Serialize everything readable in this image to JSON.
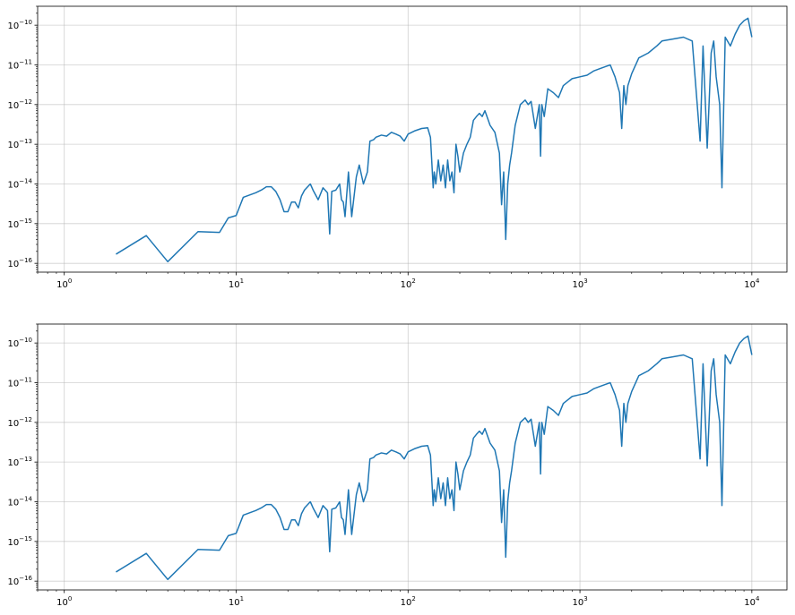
{
  "chart_data": [
    {
      "type": "line",
      "xscale": "log",
      "yscale": "log",
      "grid": true,
      "xlim": [
        0.7,
        16000
      ],
      "ylim": [
        6e-17,
        3e-10
      ],
      "x_ticks": [
        1,
        10,
        100,
        1000,
        10000
      ],
      "x_tick_labels": [
        {
          "base": "10",
          "exp": "0"
        },
        {
          "base": "10",
          "exp": "1"
        },
        {
          "base": "10",
          "exp": "2"
        },
        {
          "base": "10",
          "exp": "3"
        },
        {
          "base": "10",
          "exp": "4"
        }
      ],
      "y_ticks": [
        1e-16,
        1e-15,
        1e-14,
        1e-13,
        1e-12,
        1e-11,
        1e-10
      ],
      "y_tick_labels": [
        {
          "base": "10",
          "exp": "−16"
        },
        {
          "base": "10",
          "exp": "−15"
        },
        {
          "base": "10",
          "exp": "−14"
        },
        {
          "base": "10",
          "exp": "−13"
        },
        {
          "base": "10",
          "exp": "−12"
        },
        {
          "base": "10",
          "exp": "−11"
        },
        {
          "base": "10",
          "exp": "−10"
        }
      ],
      "series": [
        {
          "color": "#1f77b4",
          "x": [
            2,
            3,
            4,
            6,
            8,
            9,
            10,
            11,
            13,
            14,
            15,
            16,
            17,
            18,
            19,
            20,
            21,
            22,
            23,
            24,
            25,
            27,
            28,
            30,
            32,
            34,
            35,
            36,
            38,
            40,
            41,
            42,
            43,
            45,
            47,
            50,
            52,
            55,
            58,
            60,
            63,
            65,
            70,
            75,
            80,
            85,
            90,
            95,
            100,
            110,
            120,
            130,
            135,
            140,
            142,
            145,
            150,
            155,
            160,
            165,
            170,
            175,
            180,
            185,
            190,
            195,
            200,
            210,
            220,
            230,
            240,
            250,
            260,
            270,
            280,
            300,
            320,
            340,
            350,
            360,
            370,
            380,
            390,
            400,
            420,
            450,
            480,
            500,
            520,
            550,
            580,
            590,
            600,
            620,
            650,
            700,
            750,
            800,
            900,
            1000,
            1100,
            1200,
            1300,
            1400,
            1500,
            1600,
            1700,
            1750,
            1800,
            1850,
            1900,
            2000,
            2200,
            2500,
            2800,
            3000,
            3500,
            4000,
            4500,
            5000,
            5200,
            5500,
            5800,
            6000,
            6200,
            6500,
            6700,
            7000,
            7500,
            8000,
            8500,
            9000,
            9500,
            10000
          ],
          "y": [
            1.7e-16,
            5e-16,
            1.1e-16,
            6.3e-16,
            6e-16,
            1.4e-15,
            1.6e-15,
            4.6e-15,
            6e-15,
            7e-15,
            8.5e-15,
            8.5e-15,
            6.5e-15,
            4e-15,
            2e-15,
            2e-15,
            3.5e-15,
            3.5e-15,
            2.5e-15,
            5e-15,
            7e-15,
            1e-14,
            7e-15,
            4e-15,
            8e-15,
            6e-15,
            5.5e-16,
            6.5e-15,
            7e-15,
            1e-14,
            4e-15,
            3.5e-15,
            1.5e-15,
            2e-14,
            1.5e-15,
            1.5e-14,
            3e-14,
            1e-14,
            2e-14,
            1.2e-13,
            1.3e-13,
            1.5e-13,
            1.7e-13,
            1.6e-13,
            2e-13,
            1.8e-13,
            1.6e-13,
            1.2e-13,
            1.8e-13,
            2.2e-13,
            2.5e-13,
            2.6e-13,
            1.5e-13,
            8e-15,
            2e-14,
            1e-14,
            4e-14,
            1.2e-14,
            3e-14,
            8e-15,
            4e-14,
            1.2e-14,
            2e-14,
            6e-15,
            1e-13,
            5e-14,
            2e-14,
            6e-14,
            1e-13,
            1.5e-13,
            4e-13,
            5e-13,
            6e-13,
            5e-13,
            7e-13,
            3e-13,
            2e-13,
            6e-14,
            3e-15,
            2e-14,
            4e-16,
            1e-14,
            3e-14,
            6e-14,
            3e-13,
            1e-12,
            1.3e-12,
            1e-12,
            1.2e-12,
            2.5e-13,
            1e-12,
            5e-14,
            1e-12,
            5e-13,
            2.5e-12,
            2e-12,
            1.5e-12,
            3e-12,
            4.5e-12,
            5e-12,
            5.5e-12,
            7e-12,
            8e-12,
            9e-12,
            1e-11,
            5e-12,
            2e-12,
            2.5e-13,
            3e-12,
            1e-12,
            3e-12,
            6e-12,
            1.5e-11,
            2e-11,
            3e-11,
            4e-11,
            4.5e-11,
            5e-11,
            4e-11,
            1.2e-13,
            3e-11,
            8e-14,
            2e-11,
            4e-11,
            5e-12,
            1e-12,
            8e-15,
            5e-11,
            3e-11,
            6e-11,
            1e-10,
            1.3e-10,
            1.5e-10,
            5e-11
          ]
        }
      ]
    },
    {
      "type": "line",
      "xscale": "log",
      "yscale": "log",
      "grid": true,
      "xlim": [
        0.7,
        16000
      ],
      "ylim": [
        6e-17,
        3e-10
      ],
      "x_ticks": [
        1,
        10,
        100,
        1000,
        10000
      ],
      "x_tick_labels": [
        {
          "base": "10",
          "exp": "0"
        },
        {
          "base": "10",
          "exp": "1"
        },
        {
          "base": "10",
          "exp": "2"
        },
        {
          "base": "10",
          "exp": "3"
        },
        {
          "base": "10",
          "exp": "4"
        }
      ],
      "y_ticks": [
        1e-16,
        1e-15,
        1e-14,
        1e-13,
        1e-12,
        1e-11,
        1e-10
      ],
      "y_tick_labels": [
        {
          "base": "10",
          "exp": "−16"
        },
        {
          "base": "10",
          "exp": "−15"
        },
        {
          "base": "10",
          "exp": "−14"
        },
        {
          "base": "10",
          "exp": "−13"
        },
        {
          "base": "10",
          "exp": "−12"
        },
        {
          "base": "10",
          "exp": "−11"
        },
        {
          "base": "10",
          "exp": "−10"
        }
      ],
      "series": [
        {
          "color": "#1f77b4",
          "x": [
            2,
            3,
            4,
            6,
            8,
            9,
            10,
            11,
            13,
            14,
            15,
            16,
            17,
            18,
            19,
            20,
            21,
            22,
            23,
            24,
            25,
            27,
            28,
            30,
            32,
            34,
            35,
            36,
            38,
            40,
            41,
            42,
            43,
            45,
            47,
            50,
            52,
            55,
            58,
            60,
            63,
            65,
            70,
            75,
            80,
            85,
            90,
            95,
            100,
            110,
            120,
            130,
            135,
            140,
            142,
            145,
            150,
            155,
            160,
            165,
            170,
            175,
            180,
            185,
            190,
            195,
            200,
            210,
            220,
            230,
            240,
            250,
            260,
            270,
            280,
            300,
            320,
            340,
            350,
            360,
            370,
            380,
            390,
            400,
            420,
            450,
            480,
            500,
            520,
            550,
            580,
            590,
            600,
            620,
            650,
            700,
            750,
            800,
            900,
            1000,
            1100,
            1200,
            1300,
            1400,
            1500,
            1600,
            1700,
            1750,
            1800,
            1850,
            1900,
            2000,
            2200,
            2500,
            2800,
            3000,
            3500,
            4000,
            4500,
            5000,
            5200,
            5500,
            5800,
            6000,
            6200,
            6500,
            6700,
            7000,
            7500,
            8000,
            8500,
            9000,
            9500,
            10000
          ],
          "y": [
            1.7e-16,
            5e-16,
            1.1e-16,
            6.3e-16,
            6e-16,
            1.4e-15,
            1.6e-15,
            4.6e-15,
            6e-15,
            7e-15,
            8.5e-15,
            8.5e-15,
            6.5e-15,
            4e-15,
            2e-15,
            2e-15,
            3.5e-15,
            3.5e-15,
            2.5e-15,
            5e-15,
            7e-15,
            1e-14,
            7e-15,
            4e-15,
            8e-15,
            6e-15,
            5.5e-16,
            6.5e-15,
            7e-15,
            1e-14,
            4e-15,
            3.5e-15,
            1.5e-15,
            2e-14,
            1.5e-15,
            1.5e-14,
            3e-14,
            1e-14,
            2e-14,
            1.2e-13,
            1.3e-13,
            1.5e-13,
            1.7e-13,
            1.6e-13,
            2e-13,
            1.8e-13,
            1.6e-13,
            1.2e-13,
            1.8e-13,
            2.2e-13,
            2.5e-13,
            2.6e-13,
            1.5e-13,
            8e-15,
            2e-14,
            1e-14,
            4e-14,
            1.2e-14,
            3e-14,
            8e-15,
            4e-14,
            1.2e-14,
            2e-14,
            6e-15,
            1e-13,
            5e-14,
            2e-14,
            6e-14,
            1e-13,
            1.5e-13,
            4e-13,
            5e-13,
            6e-13,
            5e-13,
            7e-13,
            3e-13,
            2e-13,
            6e-14,
            3e-15,
            2e-14,
            4e-16,
            1e-14,
            3e-14,
            6e-14,
            3e-13,
            1e-12,
            1.3e-12,
            1e-12,
            1.2e-12,
            2.5e-13,
            1e-12,
            5e-14,
            1e-12,
            5e-13,
            2.5e-12,
            2e-12,
            1.5e-12,
            3e-12,
            4.5e-12,
            5e-12,
            5.5e-12,
            7e-12,
            8e-12,
            9e-12,
            1e-11,
            5e-12,
            2e-12,
            2.5e-13,
            3e-12,
            1e-12,
            3e-12,
            6e-12,
            1.5e-11,
            2e-11,
            3e-11,
            4e-11,
            4.5e-11,
            5e-11,
            4e-11,
            1.2e-13,
            3e-11,
            8e-14,
            2e-11,
            4e-11,
            5e-12,
            1e-12,
            8e-15,
            5e-11,
            3e-11,
            6e-11,
            1e-10,
            1.3e-10,
            1.5e-10,
            5e-11
          ]
        }
      ]
    }
  ]
}
